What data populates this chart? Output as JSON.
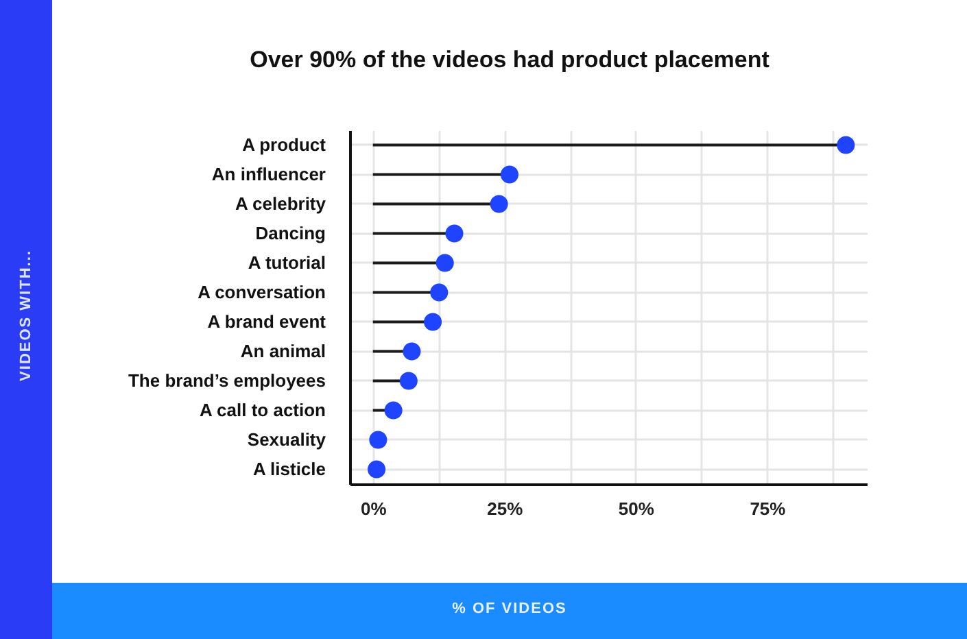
{
  "chart_data": {
    "type": "lollipop",
    "title": "Over 90% of the videos had product placement",
    "annotations": [
      "VIDEOS WITH...",
      "% OF VIDEOS"
    ],
    "categories": [
      "A product",
      "An influencer",
      "A celebrity",
      "Dancing",
      "A tutorial",
      "A conversation",
      "A brand event",
      "An animal",
      "The brand’s employees",
      "A call to action",
      "Sexuality",
      "A listicle"
    ],
    "values": [
      90,
      26,
      24,
      15.5,
      13.7,
      12.6,
      11.4,
      7.4,
      6.8,
      3.9,
      1,
      0.7
    ],
    "color": "#1f44ff",
    "orientation": "horizontal",
    "marker": "circle",
    "grid": true,
    "xlim": [
      -4.4,
      94
    ],
    "xticks": [
      {
        "value": 0,
        "label": "0%"
      },
      {
        "value": 12.5,
        "label": null
      },
      {
        "value": 25,
        "label": "25%"
      },
      {
        "value": 37.5,
        "label": null
      },
      {
        "value": 50,
        "label": "50%"
      },
      {
        "value": 62.5,
        "label": null
      },
      {
        "value": 75,
        "label": "75%"
      },
      {
        "value": 87.5,
        "label": null
      }
    ]
  }
}
